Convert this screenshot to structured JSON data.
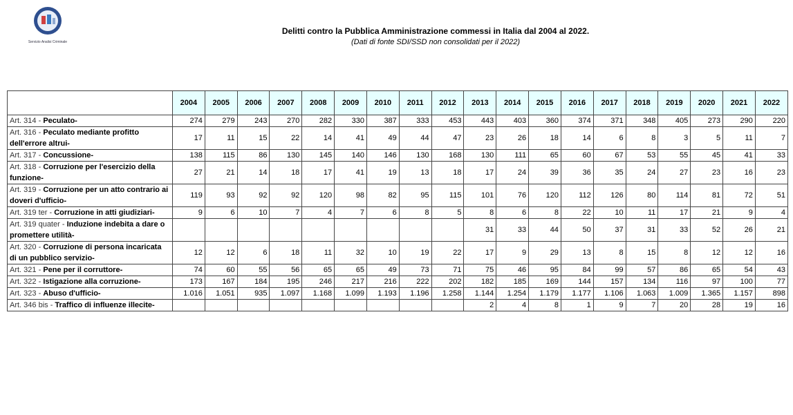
{
  "logo": {
    "caption": "Servizio Analisi Criminale"
  },
  "header": {
    "title": "Delitti contro la Pubblica Amministrazione commessi in Italia dal 2004 al 2022.",
    "subtitle": "(Dati di fonte SDI/SSD non consolidati per il 2022)"
  },
  "table": {
    "columns": [
      "2004",
      "2005",
      "2006",
      "2007",
      "2008",
      "2009",
      "2010",
      "2011",
      "2012",
      "2013",
      "2014",
      "2015",
      "2016",
      "2017",
      "2018",
      "2019",
      "2020",
      "2021",
      "2022"
    ],
    "rows": [
      {
        "article": "Art. 314 -",
        "name": "Peculato-",
        "values": [
          "274",
          "279",
          "243",
          "270",
          "282",
          "330",
          "387",
          "333",
          "453",
          "443",
          "403",
          "360",
          "374",
          "371",
          "348",
          "405",
          "273",
          "290",
          "220"
        ]
      },
      {
        "article": "Art. 316 -",
        "name": "Peculato mediante profitto dell'errore altrui-",
        "values": [
          "17",
          "11",
          "15",
          "22",
          "14",
          "41",
          "49",
          "44",
          "47",
          "23",
          "26",
          "18",
          "14",
          "6",
          "8",
          "3",
          "5",
          "11",
          "7"
        ]
      },
      {
        "article": "Art. 317 -",
        "name": "Concussione-",
        "values": [
          "138",
          "115",
          "86",
          "130",
          "145",
          "140",
          "146",
          "130",
          "168",
          "130",
          "111",
          "65",
          "60",
          "67",
          "53",
          "55",
          "45",
          "41",
          "33"
        ]
      },
      {
        "article": "Art. 318 -",
        "name": "Corruzione per l'esercizio della funzione-",
        "values": [
          "27",
          "21",
          "14",
          "18",
          "17",
          "41",
          "19",
          "13",
          "18",
          "17",
          "24",
          "39",
          "36",
          "35",
          "24",
          "27",
          "23",
          "16",
          "23"
        ]
      },
      {
        "article": "Art. 319 -",
        "name": "Corruzione per un atto contrario ai doveri d'ufficio-",
        "values": [
          "119",
          "93",
          "92",
          "92",
          "120",
          "98",
          "82",
          "95",
          "115",
          "101",
          "76",
          "120",
          "112",
          "126",
          "80",
          "114",
          "81",
          "72",
          "51"
        ]
      },
      {
        "article": "Art. 319 ter -",
        "name": "Corruzione in atti giudiziari-",
        "values": [
          "9",
          "6",
          "10",
          "7",
          "4",
          "7",
          "6",
          "8",
          "5",
          "8",
          "6",
          "8",
          "22",
          "10",
          "11",
          "17",
          "21",
          "9",
          "4"
        ]
      },
      {
        "article": "Art. 319 quater -",
        "name": "Induzione indebita a dare o promettere utilità-",
        "values": [
          null,
          null,
          null,
          null,
          null,
          null,
          null,
          null,
          null,
          "31",
          "33",
          "44",
          "50",
          "37",
          "31",
          "33",
          "52",
          "26",
          "21"
        ]
      },
      {
        "article": "Art. 320 -",
        "name": "Corruzione di persona incaricata di un pubblico servizio-",
        "values": [
          "12",
          "12",
          "6",
          "18",
          "11",
          "32",
          "10",
          "19",
          "22",
          "17",
          "9",
          "29",
          "13",
          "8",
          "15",
          "8",
          "12",
          "12",
          "16"
        ]
      },
      {
        "article": "Art. 321 -",
        "name": "Pene per il corruttore-",
        "values": [
          "74",
          "60",
          "55",
          "56",
          "65",
          "65",
          "49",
          "73",
          "71",
          "75",
          "46",
          "95",
          "84",
          "99",
          "57",
          "86",
          "65",
          "54",
          "43"
        ]
      },
      {
        "article": "Art. 322 -",
        "name": "Istigazione alla corruzione-",
        "values": [
          "173",
          "167",
          "184",
          "195",
          "246",
          "217",
          "216",
          "222",
          "202",
          "182",
          "185",
          "169",
          "144",
          "157",
          "134",
          "116",
          "97",
          "100",
          "77"
        ]
      },
      {
        "article": "Art. 323 -",
        "name": "Abuso d'ufficio-",
        "values": [
          "1.016",
          "1.051",
          "935",
          "1.097",
          "1.168",
          "1.099",
          "1.193",
          "1.196",
          "1.258",
          "1.144",
          "1.254",
          "1.179",
          "1.177",
          "1.106",
          "1.063",
          "1.009",
          "1.365",
          "1.157",
          "898"
        ]
      },
      {
        "article": "Art. 346 bis -",
        "name": "Traffico di influenze illecite-",
        "values": [
          null,
          null,
          null,
          null,
          null,
          null,
          null,
          null,
          null,
          "2",
          "4",
          "8",
          "1",
          "9",
          "7",
          "20",
          "28",
          "19",
          "16"
        ]
      }
    ]
  }
}
